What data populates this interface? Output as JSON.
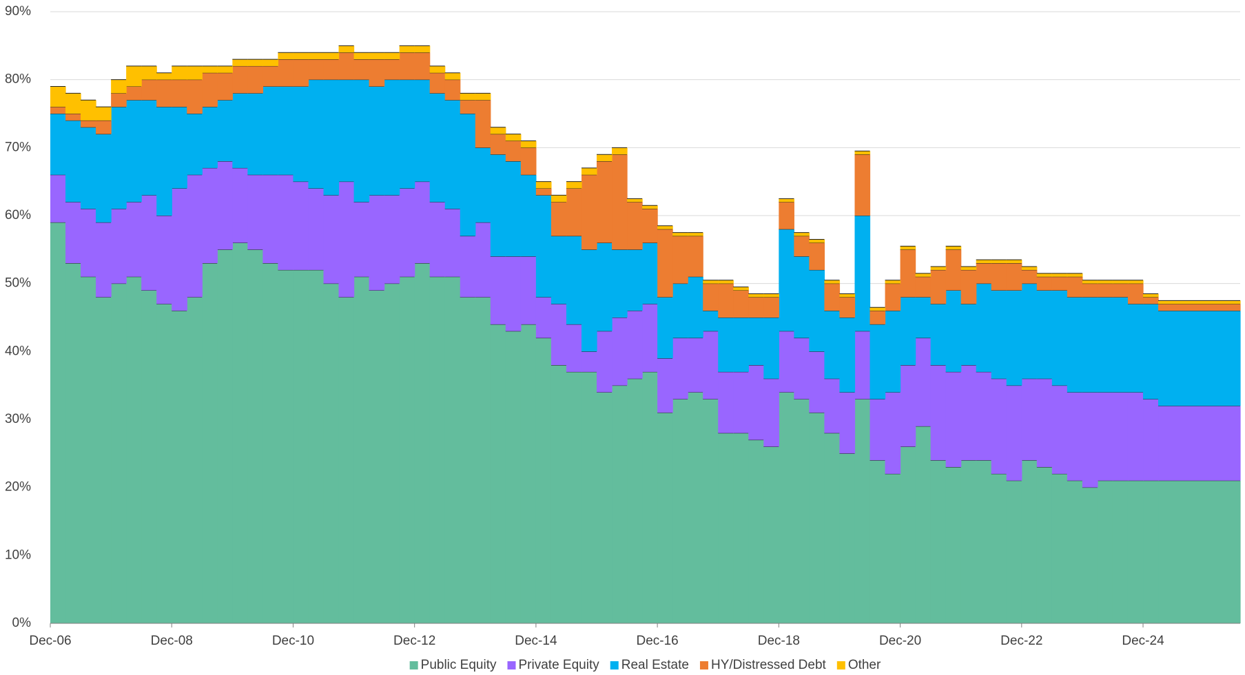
{
  "chart_data": {
    "type": "stacked-step-area",
    "categories": [
      "Dec-06",
      null,
      null,
      null,
      null,
      null,
      null,
      null,
      "Dec-08",
      null,
      null,
      null,
      null,
      null,
      null,
      null,
      "Dec-10",
      null,
      null,
      null,
      null,
      null,
      null,
      null,
      "Dec-12",
      null,
      null,
      null,
      null,
      null,
      null,
      null,
      "Dec-14",
      null,
      null,
      null,
      null,
      null,
      null,
      null,
      "Dec-16",
      null,
      null,
      null,
      null,
      null,
      null,
      null,
      "Dec-18",
      null,
      null,
      null,
      null,
      null,
      null,
      null,
      "Dec-20",
      null,
      null,
      null,
      null,
      null,
      null,
      null,
      "Dec-22",
      null,
      null,
      null,
      null,
      null,
      null,
      null,
      "Dec-24",
      null
    ],
    "series": [
      {
        "name": "Public Equity",
        "color": "#63bd9d",
        "values": [
          59,
          53,
          51,
          48,
          50,
          51,
          49,
          47,
          46,
          48,
          53,
          55,
          56,
          55,
          53,
          52,
          52,
          52,
          50,
          48,
          51,
          49,
          50,
          51,
          53,
          51,
          51,
          48,
          48,
          44,
          43,
          44,
          42,
          38,
          37,
          37,
          34,
          35,
          36,
          37,
          31,
          33,
          34,
          33,
          28,
          28,
          27,
          26,
          34,
          33,
          31,
          28,
          25,
          33,
          24,
          22,
          26,
          29,
          24,
          23,
          24,
          24,
          22,
          21,
          24,
          23,
          22,
          21,
          20,
          21,
          21,
          21,
          21,
          21
        ]
      },
      {
        "name": "Private Equity",
        "color": "#9966ff",
        "values": [
          7,
          9,
          10,
          11,
          11,
          11,
          14,
          13,
          18,
          18,
          14,
          13,
          11,
          11,
          13,
          14,
          13,
          12,
          13,
          17,
          11,
          14,
          13,
          13,
          12,
          11,
          10,
          9,
          11,
          10,
          11,
          10,
          6,
          9,
          7,
          3,
          9,
          10,
          10,
          10,
          8,
          9,
          8,
          10,
          9,
          9,
          11,
          10,
          9,
          9,
          9,
          8,
          9,
          10,
          9,
          12,
          12,
          13,
          14,
          14,
          14,
          13,
          14,
          14,
          12,
          13,
          13,
          13,
          14,
          13,
          13,
          13,
          12,
          11
        ]
      },
      {
        "name": "Real Estate",
        "color": "#00b0f0",
        "values": [
          9,
          12,
          12,
          13,
          15,
          15,
          14,
          16,
          12,
          9,
          9,
          9,
          11,
          12,
          13,
          13,
          14,
          16,
          17,
          15,
          18,
          16,
          17,
          16,
          15,
          16,
          16,
          18,
          11,
          15,
          14,
          12,
          15,
          10,
          13,
          15,
          13,
          10,
          9,
          9,
          9,
          8,
          9,
          3,
          8,
          8,
          7,
          9,
          15,
          12,
          12,
          10,
          11,
          17,
          11,
          12,
          10,
          6,
          9,
          12,
          9,
          13,
          13,
          14,
          14,
          13,
          14,
          14,
          14,
          14,
          14,
          13,
          14,
          14
        ]
      },
      {
        "name": "HY/Distressed Debt",
        "color": "#ed7d31",
        "values": [
          1,
          1,
          1,
          2,
          2,
          2,
          3,
          4,
          4,
          5,
          5,
          4,
          4,
          4,
          3,
          4,
          4,
          3,
          3,
          4,
          3,
          4,
          3,
          4,
          4,
          3,
          3,
          2,
          7,
          3,
          3,
          4,
          1,
          5,
          7,
          11,
          12,
          14,
          7,
          5,
          10,
          7,
          6,
          4,
          5,
          4,
          3,
          3,
          4,
          3,
          4,
          4,
          3,
          9,
          2,
          4,
          7,
          3,
          5,
          6,
          5,
          3,
          4,
          4,
          2,
          2,
          2,
          3,
          2,
          2,
          2,
          3,
          1,
          1
        ]
      },
      {
        "name": "Other",
        "color": "#ffc000",
        "values": [
          3,
          3,
          3,
          2,
          2,
          3,
          2,
          1,
          2,
          2,
          1,
          1,
          1,
          1,
          1,
          1,
          1,
          1,
          1,
          1,
          1,
          1,
          1,
          1,
          1,
          1,
          1,
          1,
          1,
          1,
          1,
          1,
          1,
          1,
          1,
          1,
          1,
          1,
          0.5,
          0.5,
          0.5,
          0.5,
          0.5,
          0.5,
          0.5,
          0.5,
          0.5,
          0.5,
          0.5,
          0.5,
          0.5,
          0.5,
          0.5,
          0.5,
          0.5,
          0.5,
          0.5,
          0.5,
          0.5,
          0.5,
          0.5,
          0.5,
          0.5,
          0.5,
          0.5,
          0.5,
          0.5,
          0.5,
          0.5,
          0.5,
          0.5,
          0.5,
          0.5,
          0.5
        ]
      }
    ],
    "ylim": [
      0,
      90
    ],
    "yticks": [
      {
        "value": 0,
        "label": "0%"
      },
      {
        "value": 10,
        "label": "10%"
      },
      {
        "value": 20,
        "label": "20%"
      },
      {
        "value": 30,
        "label": "30%"
      },
      {
        "value": 40,
        "label": "40%"
      },
      {
        "value": 50,
        "label": "50%"
      },
      {
        "value": 60,
        "label": "60%"
      },
      {
        "value": 70,
        "label": "70%"
      },
      {
        "value": 80,
        "label": "80%"
      },
      {
        "value": 90,
        "label": "90%"
      }
    ],
    "grid": true,
    "legend": "bottom"
  }
}
